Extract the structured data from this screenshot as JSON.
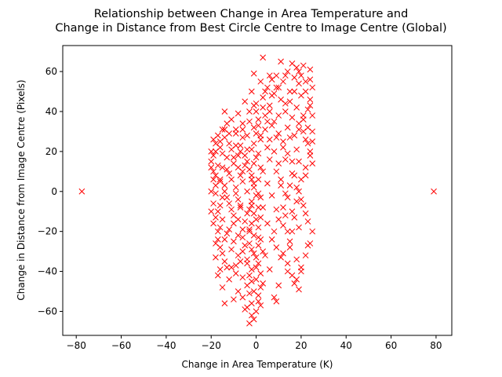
{
  "chart_data": {
    "type": "scatter",
    "title_line1": "Relationship between Change in Area Temperature and",
    "title_line2": "Change in Distance from Best Circle Centre to Image Centre (Global)",
    "xlabel": "Change in Area Temperature (K)",
    "ylabel": "Change in Distance from Image Centre (Pixels)",
    "xlim": [
      -86,
      87
    ],
    "ylim": [
      -72,
      73
    ],
    "xticks": [
      -80,
      -60,
      -40,
      -20,
      0,
      20,
      40,
      60,
      80
    ],
    "yticks": [
      -60,
      -40,
      -20,
      0,
      20,
      40,
      60
    ],
    "marker": "x",
    "color": "#ff0000",
    "grid": false,
    "series": [
      {
        "name": "",
        "points": [
          [
            -77.5,
            0
          ],
          [
            79,
            0
          ],
          [
            3,
            67
          ],
          [
            11,
            65
          ],
          [
            16,
            64
          ],
          [
            21,
            63
          ],
          [
            -1,
            59
          ],
          [
            6,
            58
          ],
          [
            9,
            58
          ],
          [
            14,
            60
          ],
          [
            19,
            60
          ],
          [
            24,
            61
          ],
          [
            2,
            55
          ],
          [
            5,
            52
          ],
          [
            12,
            55
          ],
          [
            17,
            57
          ],
          [
            22,
            55
          ],
          [
            25,
            52
          ],
          [
            -2,
            50
          ],
          [
            3,
            47
          ],
          [
            8,
            49
          ],
          [
            15,
            50
          ],
          [
            20,
            48
          ],
          [
            24,
            46
          ],
          [
            -5,
            45
          ],
          [
            0,
            44
          ],
          [
            6,
            43
          ],
          [
            13,
            44
          ],
          [
            18,
            42
          ],
          [
            23,
            41
          ],
          [
            -8,
            39
          ],
          [
            -3,
            40
          ],
          [
            4,
            38
          ],
          [
            10,
            38
          ],
          [
            16,
            37
          ],
          [
            21,
            36
          ],
          [
            -11,
            36
          ],
          [
            -6,
            34
          ],
          [
            1,
            33
          ],
          [
            7,
            33
          ],
          [
            14,
            32
          ],
          [
            19,
            31
          ],
          [
            25,
            30
          ],
          [
            -14,
            31
          ],
          [
            -9,
            29
          ],
          [
            -4,
            28
          ],
          [
            2,
            28
          ],
          [
            9,
            27
          ],
          [
            15,
            27
          ],
          [
            22,
            26
          ],
          [
            -16,
            25
          ],
          [
            -12,
            24
          ],
          [
            -7,
            23
          ],
          [
            -1,
            24
          ],
          [
            5,
            22
          ],
          [
            12,
            22
          ],
          [
            18,
            21
          ],
          [
            24,
            20
          ],
          [
            -19,
            18
          ],
          [
            -15,
            19
          ],
          [
            -10,
            17
          ],
          [
            -5,
            18
          ],
          [
            0,
            17
          ],
          [
            6,
            16
          ],
          [
            13,
            16
          ],
          [
            19,
            15
          ],
          [
            25,
            14
          ],
          [
            -20,
            12
          ],
          [
            -17,
            13
          ],
          [
            -13,
            11
          ],
          [
            -8,
            12
          ],
          [
            -3,
            11
          ],
          [
            3,
            10
          ],
          [
            9,
            10
          ],
          [
            16,
            9
          ],
          [
            22,
            8
          ],
          [
            -19,
            6
          ],
          [
            -16,
            5
          ],
          [
            -11,
            6
          ],
          [
            -6,
            5
          ],
          [
            -1,
            4
          ],
          [
            5,
            4
          ],
          [
            11,
            3
          ],
          [
            18,
            2
          ],
          [
            -20,
            0
          ],
          [
            -18,
            -1
          ],
          [
            -14,
            0
          ],
          [
            -9,
            -1
          ],
          [
            -4,
            0
          ],
          [
            1,
            -1
          ],
          [
            7,
            -2
          ],
          [
            14,
            -3
          ],
          [
            20,
            -4
          ],
          [
            -19,
            -6
          ],
          [
            -16,
            -7
          ],
          [
            -12,
            -6
          ],
          [
            -7,
            -8
          ],
          [
            -2,
            -7
          ],
          [
            3,
            -8
          ],
          [
            9,
            -9
          ],
          [
            16,
            -10
          ],
          [
            22,
            -11
          ],
          [
            -18,
            -13
          ],
          [
            -15,
            -14
          ],
          [
            -10,
            -12
          ],
          [
            -5,
            -15
          ],
          [
            0,
            -14
          ],
          [
            5,
            -16
          ],
          [
            12,
            -17
          ],
          [
            19,
            -18
          ],
          [
            -17,
            -20
          ],
          [
            -13,
            -21
          ],
          [
            -8,
            -22
          ],
          [
            -3,
            -20
          ],
          [
            1,
            -23
          ],
          [
            7,
            -24
          ],
          [
            15,
            -25
          ],
          [
            23,
            -27
          ],
          [
            -16,
            -28
          ],
          [
            -11,
            -29
          ],
          [
            -6,
            -30
          ],
          [
            -1,
            -31
          ],
          [
            4,
            -32
          ],
          [
            11,
            -33
          ],
          [
            18,
            -34
          ],
          [
            -14,
            -35
          ],
          [
            -9,
            -37
          ],
          [
            -4,
            -36
          ],
          [
            0,
            -38
          ],
          [
            6,
            -39
          ],
          [
            14,
            -40
          ],
          [
            20,
            -40
          ],
          [
            -17,
            -42
          ],
          [
            -12,
            -44
          ],
          [
            -6,
            -43
          ],
          [
            -2,
            -45
          ],
          [
            3,
            -46
          ],
          [
            10,
            -47
          ],
          [
            17,
            -46
          ],
          [
            -15,
            -48
          ],
          [
            -8,
            -50
          ],
          [
            -3,
            -51
          ],
          [
            1,
            -52
          ],
          [
            8,
            -53
          ],
          [
            19,
            -49
          ],
          [
            -10,
            -54
          ],
          [
            -2,
            -56
          ],
          [
            2,
            -57
          ],
          [
            9,
            -55
          ],
          [
            -14,
            -56
          ],
          [
            -4,
            -58
          ],
          [
            0,
            -60
          ],
          [
            -2,
            -62
          ],
          [
            -1,
            -64
          ],
          [
            -3,
            -66
          ],
          [
            -5,
            -59
          ],
          [
            1,
            -55
          ],
          [
            -6,
            -53
          ],
          [
            -1,
            -50
          ],
          [
            2,
            -48
          ],
          [
            -4,
            -47
          ],
          [
            0,
            -44
          ],
          [
            -3,
            -42
          ],
          [
            2,
            -41
          ],
          [
            -2,
            -39
          ],
          [
            1,
            -36
          ],
          [
            -4,
            -34
          ],
          [
            0,
            -33
          ],
          [
            3,
            -30
          ],
          [
            -2,
            -29
          ],
          [
            1,
            -27
          ],
          [
            -3,
            -26
          ],
          [
            2,
            -24
          ],
          [
            -1,
            -22
          ],
          [
            -3,
            -19
          ],
          [
            1,
            -18
          ],
          [
            -2,
            -16
          ],
          [
            2,
            -13
          ],
          [
            -1,
            -11
          ],
          [
            -3,
            -9
          ],
          [
            1,
            -8
          ],
          [
            -2,
            -5
          ],
          [
            2,
            -3
          ],
          [
            0,
            -2
          ],
          [
            -1,
            2
          ],
          [
            1,
            6
          ],
          [
            -2,
            8
          ],
          [
            2,
            12
          ],
          [
            -1,
            14
          ],
          [
            1,
            19
          ],
          [
            -2,
            21
          ],
          [
            2,
            26
          ],
          [
            0,
            29
          ],
          [
            -1,
            32
          ],
          [
            1,
            36
          ],
          [
            0,
            40
          ],
          [
            -1,
            43
          ],
          [
            -18,
            8
          ],
          [
            -20,
            -10
          ],
          [
            -19,
            -16
          ],
          [
            -17,
            -24
          ],
          [
            -18,
            3
          ],
          [
            -19,
            10
          ],
          [
            -20,
            15
          ],
          [
            -18,
            20
          ],
          [
            -16,
            22
          ],
          [
            -14,
            27
          ],
          [
            -12,
            29
          ],
          [
            -13,
            34
          ],
          [
            -9,
            31
          ],
          [
            -6,
            27
          ],
          [
            -7,
            20
          ],
          [
            -10,
            14
          ],
          [
            -12,
            9
          ],
          [
            -14,
            3
          ],
          [
            -13,
            -3
          ],
          [
            -11,
            -9
          ],
          [
            -10,
            -16
          ],
          [
            -12,
            -19
          ],
          [
            -14,
            -24
          ],
          [
            -15,
            -31
          ],
          [
            -13,
            -38
          ],
          [
            -9,
            -41
          ],
          [
            -7,
            -35
          ],
          [
            -5,
            -27
          ],
          [
            -6,
            -19
          ],
          [
            -8,
            -14
          ],
          [
            -7,
            -7
          ],
          [
            -9,
            2
          ],
          [
            -7,
            8
          ],
          [
            -5,
            13
          ],
          [
            -4,
            21
          ],
          [
            -6,
            31
          ],
          [
            -3,
            35
          ],
          [
            4,
            31
          ],
          [
            6,
            26
          ],
          [
            8,
            20
          ],
          [
            10,
            14
          ],
          [
            11,
            6
          ],
          [
            13,
            -1
          ],
          [
            12,
            -8
          ],
          [
            10,
            -14
          ],
          [
            8,
            -20
          ],
          [
            9,
            -28
          ],
          [
            12,
            -31
          ],
          [
            14,
            -36
          ],
          [
            16,
            -42
          ],
          [
            18,
            -44
          ],
          [
            20,
            -38
          ],
          [
            22,
            -32
          ],
          [
            24,
            -26
          ],
          [
            25,
            -20
          ],
          [
            23,
            -15
          ],
          [
            21,
            -7
          ],
          [
            19,
            0
          ],
          [
            20,
            6
          ],
          [
            22,
            12
          ],
          [
            24,
            18
          ],
          [
            25,
            25
          ],
          [
            23,
            32
          ],
          [
            21,
            38
          ],
          [
            24,
            43
          ],
          [
            22,
            50
          ],
          [
            19,
            54
          ],
          [
            17,
            50
          ],
          [
            15,
            45
          ],
          [
            13,
            40
          ],
          [
            11,
            46
          ],
          [
            9,
            52
          ],
          [
            7,
            48
          ],
          [
            6,
            40
          ],
          [
            8,
            35
          ],
          [
            10,
            29
          ],
          [
            12,
            25
          ],
          [
            14,
            19
          ],
          [
            16,
            15
          ],
          [
            17,
            8
          ],
          [
            18,
            -5
          ],
          [
            17,
            -13
          ],
          [
            16,
            -20
          ],
          [
            15,
            -28
          ],
          [
            14,
            -20
          ],
          [
            13,
            -12
          ],
          [
            15,
            3
          ],
          [
            17,
            28
          ],
          [
            19,
            34
          ],
          [
            21,
            30
          ],
          [
            23,
            24
          ],
          [
            25,
            38
          ],
          [
            24,
            56
          ],
          [
            20,
            58
          ],
          [
            18,
            62
          ],
          [
            13,
            58
          ],
          [
            10,
            52
          ],
          [
            7,
            56
          ],
          [
            4,
            50
          ],
          [
            3,
            42
          ],
          [
            5,
            35
          ],
          [
            -18,
            -26
          ],
          [
            -16,
            -18
          ],
          [
            -17,
            -10
          ],
          [
            -15,
            -3
          ],
          [
            -16,
            6
          ],
          [
            -15,
            12
          ],
          [
            -13,
            17
          ],
          [
            -11,
            21
          ],
          [
            -9,
            23
          ],
          [
            -14,
            40
          ],
          [
            -15,
            31
          ],
          [
            -17,
            28
          ],
          [
            -18,
            24
          ],
          [
            -19,
            26
          ],
          [
            -20,
            20
          ],
          [
            -8,
            18
          ],
          [
            -4,
            15
          ],
          [
            -6,
            10
          ],
          [
            -2,
            6
          ],
          [
            -8,
            -4
          ],
          [
            -4,
            -11
          ],
          [
            -6,
            -23
          ],
          [
            -10,
            -25
          ],
          [
            -8,
            -32
          ],
          [
            -11,
            -38
          ],
          [
            -16,
            -39
          ],
          [
            -18,
            -33
          ]
        ]
      }
    ]
  }
}
